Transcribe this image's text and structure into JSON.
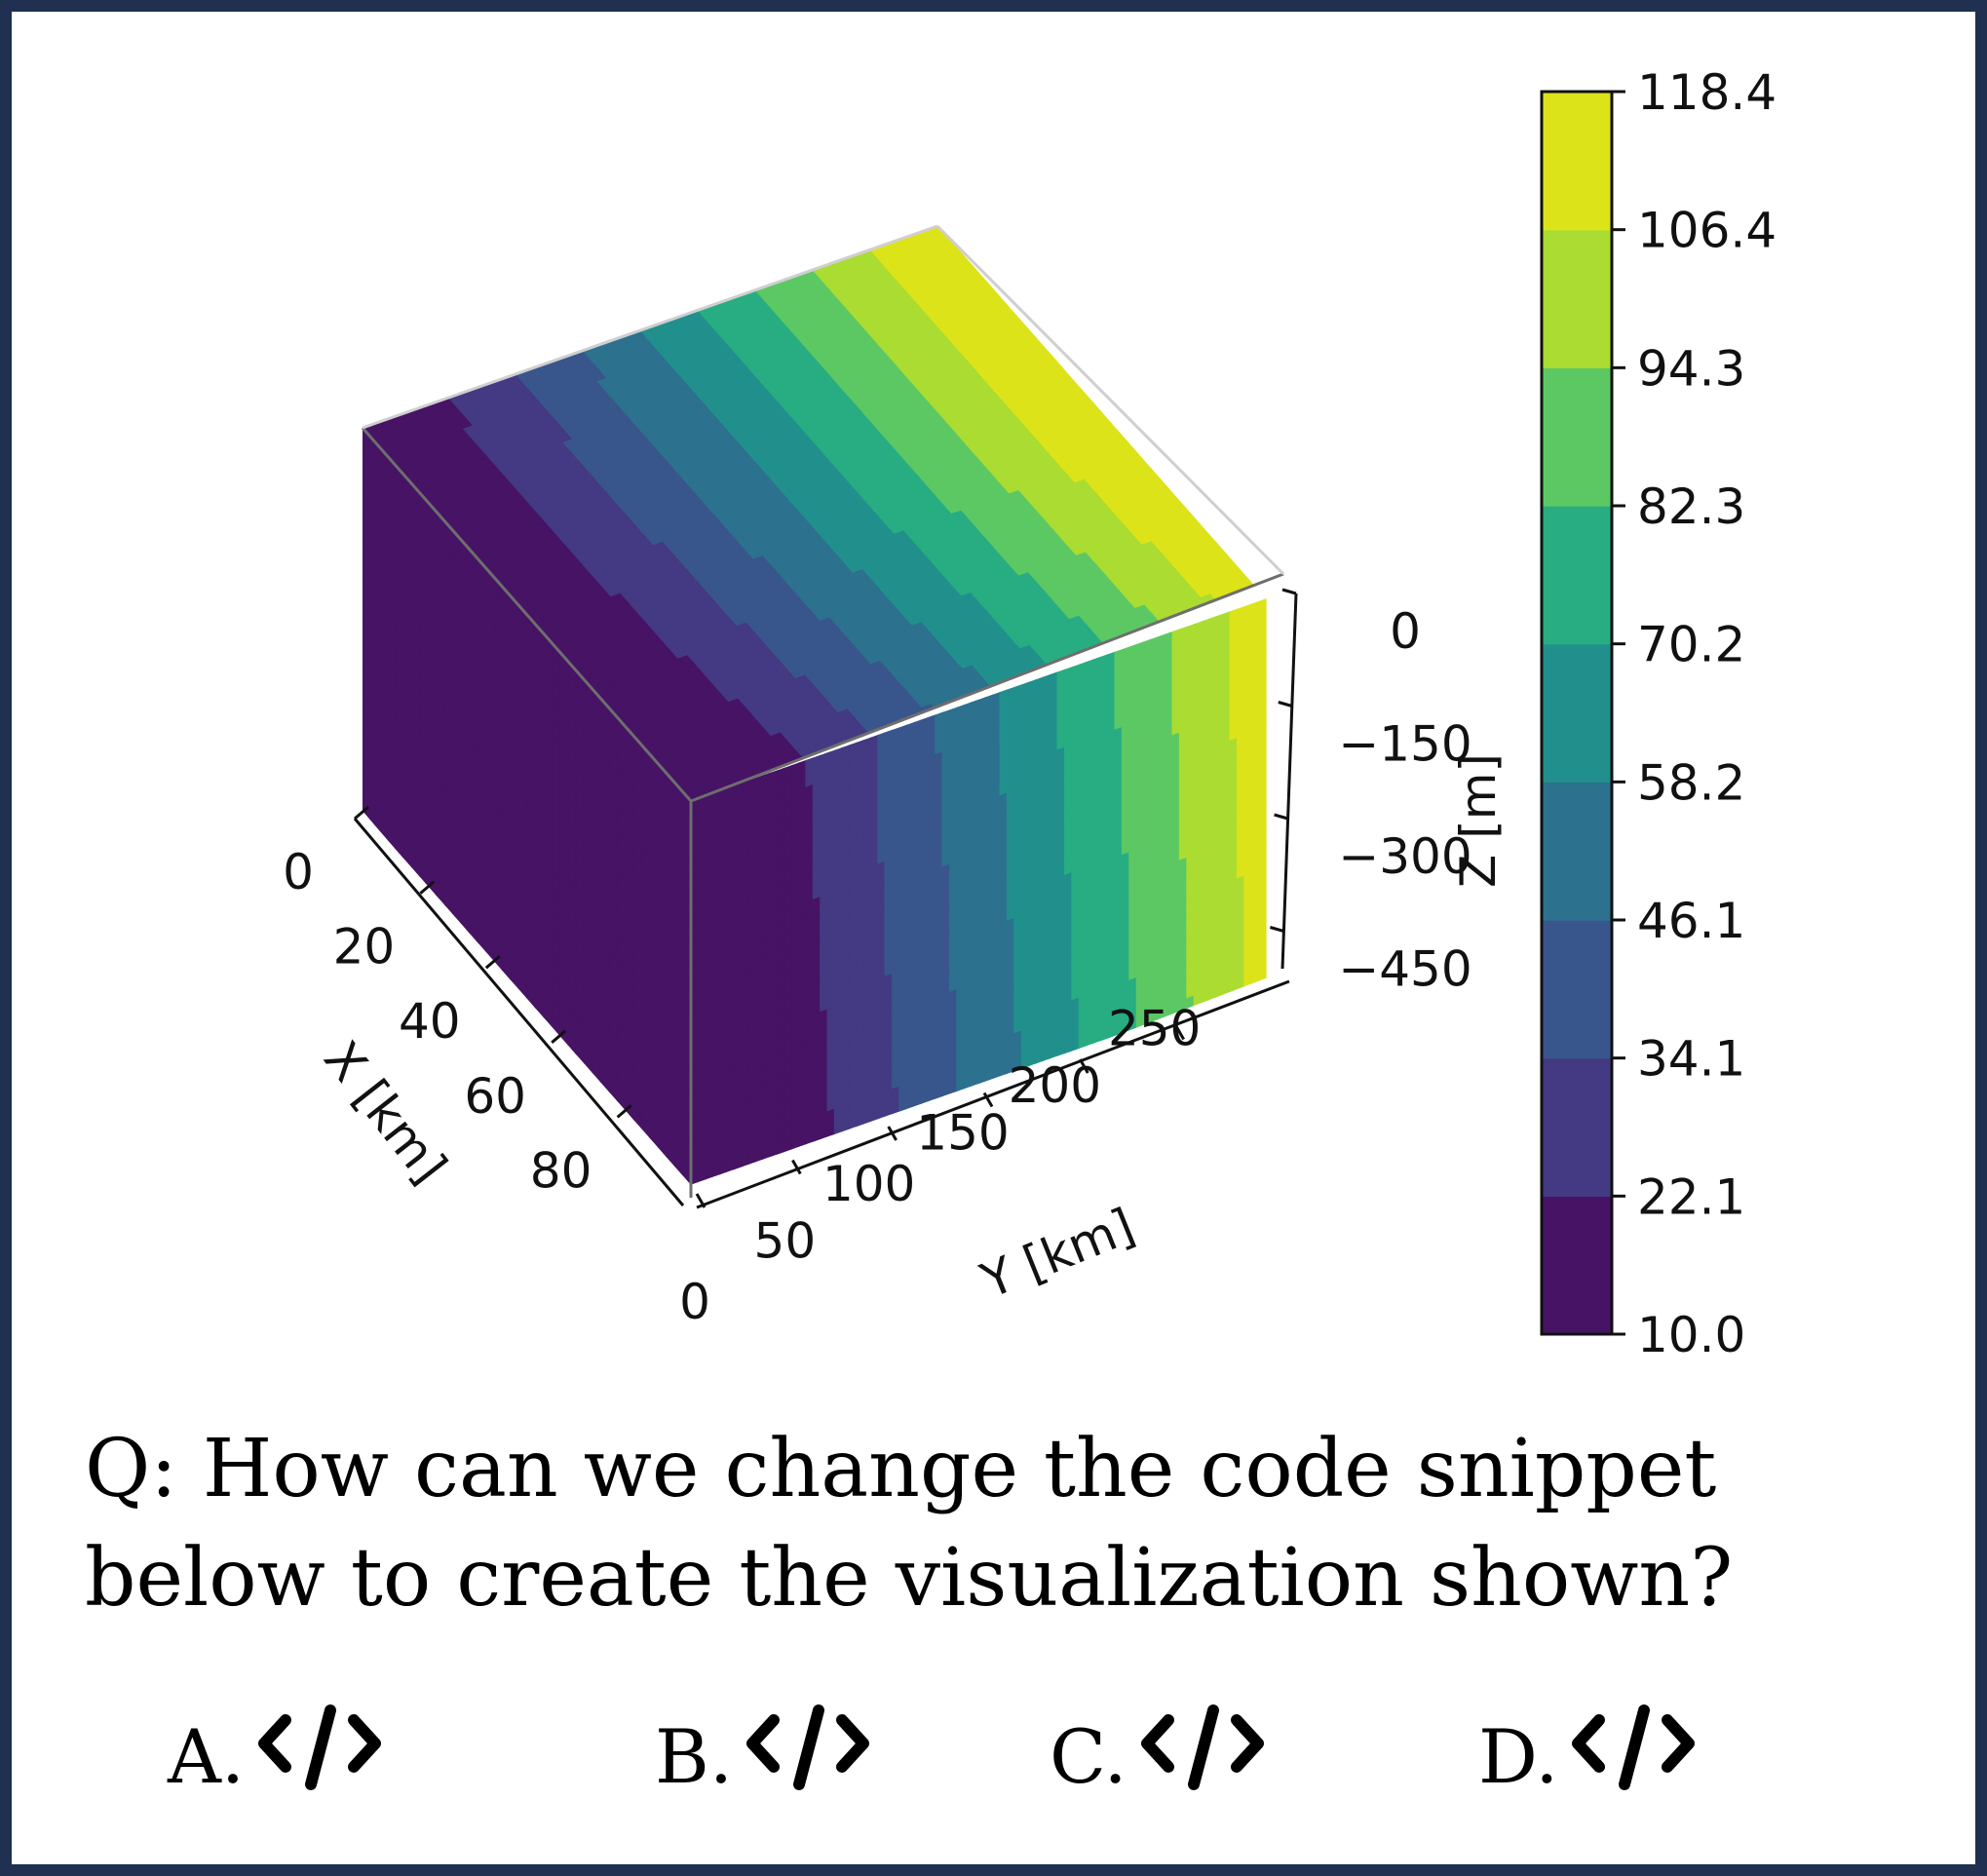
{
  "chart_data": {
    "type": "3d-contour-box",
    "colormap": "viridis",
    "x_axis": {
      "label": "X [km]",
      "ticks": [
        "0",
        "20",
        "40",
        "60",
        "80"
      ],
      "range": [
        0,
        100
      ]
    },
    "y_axis": {
      "label": "Y [km]",
      "ticks": [
        "0",
        "50",
        "100",
        "150",
        "200",
        "250"
      ],
      "range": [
        0,
        300
      ]
    },
    "z_axis": {
      "label": "Z [m]",
      "ticks": [
        "0",
        "−150",
        "−300",
        "−450"
      ],
      "range": [
        -500,
        0
      ]
    },
    "colorbar": {
      "levels": [
        10.0,
        22.1,
        34.1,
        46.1,
        58.2,
        70.2,
        82.3,
        94.3,
        106.4,
        118.4
      ],
      "tick_labels": [
        "10.0",
        "22.1",
        "34.1",
        "46.1",
        "58.2",
        "70.2",
        "82.3",
        "94.3",
        "106.4",
        "118.4"
      ],
      "colors": [
        "#471365",
        "#443983",
        "#39568c",
        "#2c718e",
        "#21908d",
        "#27ad81",
        "#5cc863",
        "#aadc32",
        "#dce319"
      ]
    },
    "frame_color": "#1f3050"
  },
  "question": "Q: How can we change the code snippet below to create the visualization shown?",
  "options": [
    {
      "letter": "A.",
      "icon": "code-icon"
    },
    {
      "letter": "B.",
      "icon": "code-icon"
    },
    {
      "letter": "C.",
      "icon": "code-icon"
    },
    {
      "letter": "D.",
      "icon": "code-icon"
    }
  ]
}
